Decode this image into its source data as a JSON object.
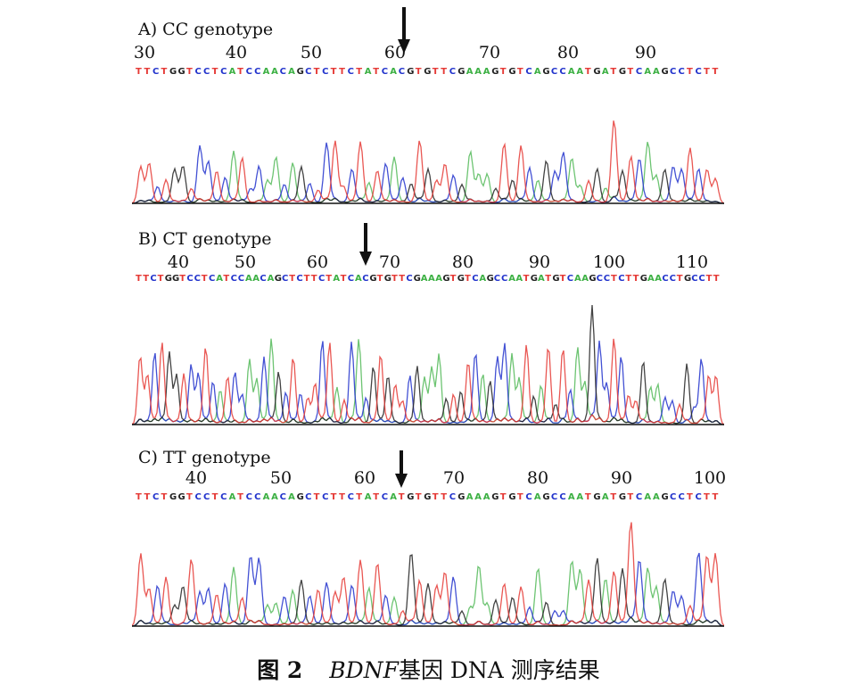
{
  "panels": [
    {
      "title": "A) CC genotype",
      "ruler": [
        "30",
        "40",
        "50",
        "60",
        "70",
        "80",
        "90"
      ],
      "sequence": "TTCTGGTCCTCATCCAACAGCTCTTCTATCACGTGTTCGAAAGTGTCAGCCAATGATGTCAAGCCTCTT"
    },
    {
      "title": "B) CT genotype",
      "ruler": [
        "40",
        "50",
        "60",
        "70",
        "80",
        "90",
        "100",
        "110"
      ],
      "sequence": "TTCTGGTCCTCATCCAACAGCTCTTCTATCACGTGTTCGAAAGTGTCAGCCAATGATGTCAAGCCTCTTGAACCTGCCTT"
    },
    {
      "title": "C) TT genotype",
      "ruler": [
        "40",
        "50",
        "60",
        "70",
        "80",
        "90",
        "100"
      ],
      "sequence": "TTCTGGTCCTCATCCAACAGCTCTTCTATCATGTGTTCGAAAGTGTCAGCCAATGATGTCAAGCCTCTT"
    }
  ],
  "base_colors": {
    "A": "#3cb043",
    "C": "#2233cc",
    "G": "#222222",
    "T": "#e53935"
  },
  "caption": {
    "figure_label": "图 2",
    "gene": "BDNF",
    "text": "基因 DNA 测序结果"
  }
}
